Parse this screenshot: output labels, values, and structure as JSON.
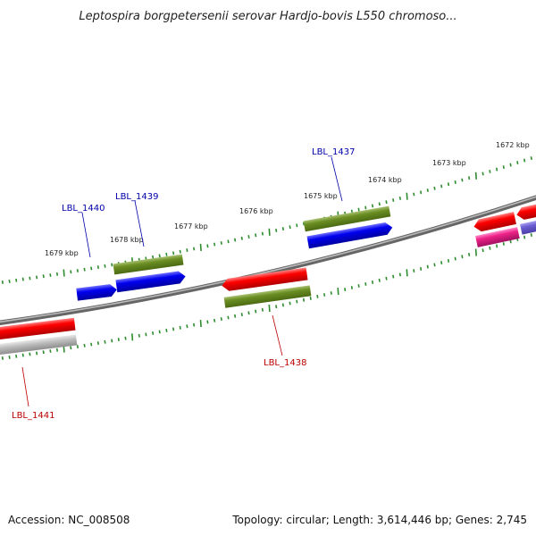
{
  "title": "Leptospira borgpetersenii serovar Hardjo-bovis L550 chromoso...",
  "footer": {
    "accession": "Accession: NC_008508",
    "summary": "Topology: circular; Length: 3,614,446 bp; Genes: 2,745"
  },
  "colors": {
    "backbone": "#8a8a8a",
    "tick": "#2e8b2e",
    "label_forward": "#0000aa",
    "label_reverse": "#bb0000",
    "red": "#e00000",
    "blue": "#0000ee",
    "olive": "#6b8e23",
    "gray": "#b0b0b0",
    "magenta": "#ee2288",
    "purple": "#6b5fd3"
  },
  "kbp_labels": [
    "1679 kbp",
    "1678 kbp",
    "1677 kbp",
    "1676 kbp",
    "1675 kbp",
    "1674 kbp",
    "1673 kbp",
    "1672 kbp"
  ],
  "gene_labels": [
    {
      "text": "LBL_1440",
      "strand": "forward"
    },
    {
      "text": "LBL_1439",
      "strand": "forward"
    },
    {
      "text": "LBL_1437",
      "strand": "forward"
    },
    {
      "text": "LBL_1438",
      "strand": "reverse"
    },
    {
      "text": "LBL_1441",
      "strand": "reverse"
    }
  ]
}
